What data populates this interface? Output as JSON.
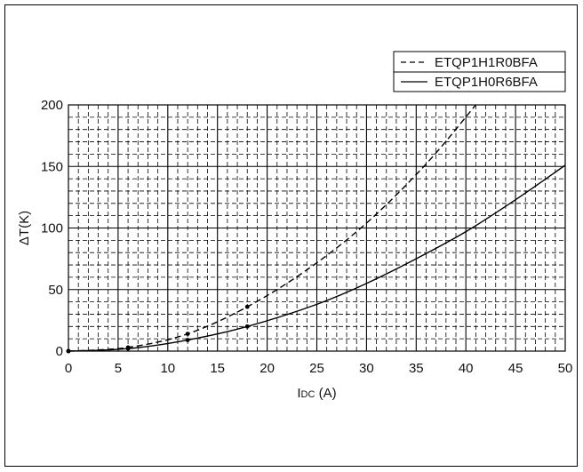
{
  "chart_data": {
    "type": "line",
    "xlabel_main": "I",
    "xlabel_sub": "DC",
    "xlabel_unit": " (A)",
    "ylabel": "ΔT(K)",
    "xlim": [
      0,
      50
    ],
    "ylim": [
      0,
      200
    ],
    "xticks": [
      "0",
      "5",
      "10",
      "15",
      "20",
      "25",
      "30",
      "35",
      "40",
      "45",
      "50"
    ],
    "yticks": [
      "0",
      "50",
      "100",
      "150",
      "200"
    ],
    "grid": true,
    "legend_position": "top-right",
    "series": [
      {
        "name": "ETQP1H1R0BFA",
        "style": "dashed",
        "color": "#000000",
        "x": [
          0,
          6,
          12,
          18,
          24,
          30,
          36,
          41
        ],
        "values": [
          0,
          3,
          14,
          36,
          66,
          104,
          152,
          200
        ],
        "markers_x": [
          0,
          6,
          12,
          18
        ],
        "markers_y": [
          0,
          3,
          14,
          36
        ]
      },
      {
        "name": "ETQP1H0R6BFA",
        "style": "solid",
        "color": "#000000",
        "x": [
          0,
          6,
          12,
          18,
          25,
          30,
          35,
          40,
          45,
          50
        ],
        "values": [
          0,
          2,
          9,
          20,
          38,
          55,
          75,
          97,
          123,
          151
        ],
        "markers_x": [
          0,
          6,
          12,
          18
        ],
        "markers_y": [
          0,
          2,
          9,
          20
        ]
      }
    ]
  }
}
